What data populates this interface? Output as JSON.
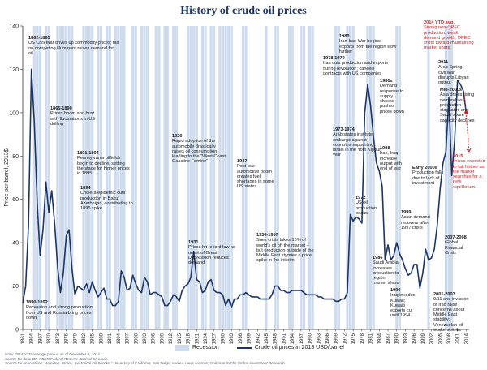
{
  "title": "History of crude oil prices",
  "chart_data": {
    "type": "line",
    "ylabel": "Price per barrel, 2013$",
    "xlabel": "",
    "ylim": [
      0,
      140
    ],
    "xlim": [
      1861,
      2015
    ],
    "y_ticks": [
      "0",
      "20",
      "40",
      "60",
      "80",
      "100",
      "120",
      "140"
    ],
    "x_ticks": [
      "1861",
      "1864",
      "1867",
      "1870",
      "1873",
      "1876",
      "1879",
      "1882",
      "1885",
      "1888",
      "1891",
      "1894",
      "1897",
      "1900",
      "1903",
      "1906",
      "1909",
      "1912",
      "1915",
      "1918",
      "1921",
      "1924",
      "1927",
      "1930",
      "1933",
      "1936",
      "1939",
      "1942",
      "1945",
      "1948",
      "1951",
      "1954",
      "1957",
      "1960",
      "1963",
      "1966",
      "1969",
      "1972",
      "1975",
      "1978",
      "1981",
      "1984",
      "1987",
      "1990",
      "1993",
      "1996",
      "1999",
      "2002",
      "2005",
      "2008",
      "2011",
      "2014"
    ],
    "series": [
      {
        "name": "Crude oil prices in 2013 USD/barrel",
        "color": "#1d3466",
        "x": [
          1861,
          1862,
          1863,
          1864,
          1865,
          1866,
          1867,
          1868,
          1869,
          1870,
          1871,
          1872,
          1873,
          1874,
          1875,
          1876,
          1877,
          1878,
          1879,
          1880,
          1881,
          1882,
          1883,
          1884,
          1885,
          1886,
          1887,
          1888,
          1889,
          1890,
          1891,
          1892,
          1893,
          1894,
          1895,
          1896,
          1897,
          1898,
          1899,
          1900,
          1901,
          1902,
          1903,
          1904,
          1905,
          1906,
          1907,
          1908,
          1909,
          1910,
          1911,
          1912,
          1913,
          1914,
          1915,
          1916,
          1917,
          1918,
          1919,
          1920,
          1921,
          1922,
          1923,
          1924,
          1925,
          1926,
          1927,
          1928,
          1929,
          1930,
          1931,
          1932,
          1933,
          1934,
          1935,
          1936,
          1937,
          1938,
          1939,
          1940,
          1941,
          1942,
          1943,
          1944,
          1945,
          1946,
          1947,
          1948,
          1949,
          1950,
          1951,
          1952,
          1953,
          1954,
          1955,
          1956,
          1957,
          1958,
          1959,
          1960,
          1961,
          1962,
          1963,
          1964,
          1965,
          1966,
          1967,
          1968,
          1969,
          1970,
          1971,
          1972,
          1973,
          1974,
          1975,
          1976,
          1977,
          1978,
          1979,
          1980,
          1981,
          1982,
          1983,
          1984,
          1985,
          1986,
          1987,
          1988,
          1989,
          1990,
          1991,
          1992,
          1993,
          1994,
          1995,
          1996,
          1997,
          1998,
          1999,
          2000,
          2001,
          2002,
          2003,
          2004,
          2005,
          2006,
          2007,
          2008,
          2009,
          2010,
          2011,
          2012,
          2013,
          2014
        ],
        "values": [
          12,
          20,
          48,
          120,
          95,
          58,
          34,
          46,
          68,
          54,
          64,
          49,
          29,
          17,
          26,
          43,
          46,
          28,
          16,
          20,
          19,
          18,
          21,
          17,
          22,
          18,
          15,
          17,
          19,
          14,
          14,
          11,
          11,
          13,
          27,
          24,
          18,
          19,
          25,
          21,
          18,
          17,
          24,
          22,
          16,
          17,
          17,
          16,
          15,
          11,
          11,
          13,
          16,
          15,
          13,
          18,
          20,
          21,
          24,
          36,
          23,
          22,
          17,
          18,
          22,
          23,
          18,
          17,
          17,
          16,
          11,
          14,
          10,
          14,
          14,
          16,
          16,
          17,
          16,
          15,
          15,
          15,
          14,
          14,
          14,
          14,
          16,
          20,
          20,
          18,
          18,
          17,
          17,
          18,
          18,
          18,
          18,
          17,
          16,
          16,
          16,
          16,
          15,
          15,
          14,
          14,
          14,
          14,
          13,
          13,
          14,
          14,
          17,
          53,
          50,
          52,
          51,
          49,
          100,
          113,
          103,
          89,
          77,
          73,
          66,
          32,
          39,
          32,
          34,
          40,
          35,
          32,
          28,
          25,
          26,
          30,
          30,
          19,
          26,
          37,
          32,
          33,
          37,
          48,
          65,
          77,
          82,
          107,
          71,
          87,
          115,
          113,
          110,
          100
        ]
      }
    ],
    "annotations": [
      {
        "year": "1862-1865",
        "text": "US Civil War drives up commodity prices; tax on competing illuminant raises demand for oil"
      },
      {
        "year": "1865-1890",
        "text": "Prices boom and bust with fluctuations in US drilling"
      },
      {
        "year": "1891-1894",
        "text": "Pennsylvania oilfields begin to decline, setting the stage for higher prices in 1895"
      },
      {
        "year": "1894",
        "text": "Cholera epidemic cuts production in Baku, Azerbaijan, contributing to 1895 spike"
      },
      {
        "year": "1890-1892",
        "text": "Recession and strong production from US and Russia bring prices down"
      },
      {
        "year": "1920",
        "text": "Rapid adoption of the automobile drastically raises oil consumption, leading to the \"West Coast Gasoline Famine\""
      },
      {
        "year": "1931",
        "text": "Prices hit record low as onset of Great Depression reduces demand"
      },
      {
        "year": "1947",
        "text": "Post-war automotive boom creates fuel shortages in some US states"
      },
      {
        "year": "1956-1957",
        "text": "Suez crisis takes 10% of world's oil off the market – but production outside of the Middle East stymies a price spike in the interim"
      },
      {
        "year": "1973-1974",
        "text": "Arab states institute embargo against countries supporting Israel in the Yom Kippur War"
      },
      {
        "year": "1972",
        "text": "US oil production peaks"
      },
      {
        "year": "1978-1979",
        "text": "Iran cuts production and exports during revolution; cancels contracts with US companies"
      },
      {
        "year": "1980",
        "text": "Iran-Iraq War begins; exports from the region slow further"
      },
      {
        "year": "1980s",
        "text": "Demand response to supply shocks pushes prices down"
      },
      {
        "year": "1986",
        "text": "Saudi Arabia increases production to regain market share"
      },
      {
        "year": "1988",
        "text": "Iran, Iraq increase output with end of war"
      },
      {
        "year": "1990",
        "text": "Iraq invades Kuwait; Kuwaiti exports cut until 1994"
      },
      {
        "year": "1999",
        "text": "Asian demand recovers after 1997 crisis"
      },
      {
        "year": "Early 2000s",
        "text": "Production falls due to lack of investment"
      },
      {
        "year": "2001-2003",
        "text": "9/11 and invasion of Iraq raise concerns about Middle East stability; Venezuelan oil workers strike"
      },
      {
        "year": "2007-2008",
        "text": "Global Financial Crisis"
      },
      {
        "year": "Mid-2000s",
        "text": "Asia drives rising demand as production stagnates and Saudi spare capacity declines"
      },
      {
        "year": "2011",
        "text": "Arab Spring; civil war disrupts Libyan output"
      },
      {
        "year": "2014 YTD avg.",
        "text": "Strong non-OPEC production; weak demand growth; OPEC shifts toward maintaining market share",
        "color": "#d21f26"
      },
      {
        "year": "2015",
        "text": "Prices expected to fall further as the market searches for a new equilibrium.",
        "color": "#d21f26"
      }
    ],
    "recession_color": "#cfdcee",
    "line_color": "#1d3466",
    "highlight_color": "#d21f26",
    "grid": false,
    "legend": "bottom"
  },
  "legend": {
    "recession_label": "Recession",
    "line_label": "Crude oil prices in 2013 USD/barrel"
  },
  "footnotes": [
    "Note: 2014 YTD average price is as of December 8, 2014.",
    "Source for data: BP, NBER/Federal Reserve Bank of St. Louis.",
    "Source for annotations: Hamilton, James, \"Historical Oil Shocks,\" University of California, San Diego; various news sources; Goldman Sachs Global Investment Research."
  ]
}
